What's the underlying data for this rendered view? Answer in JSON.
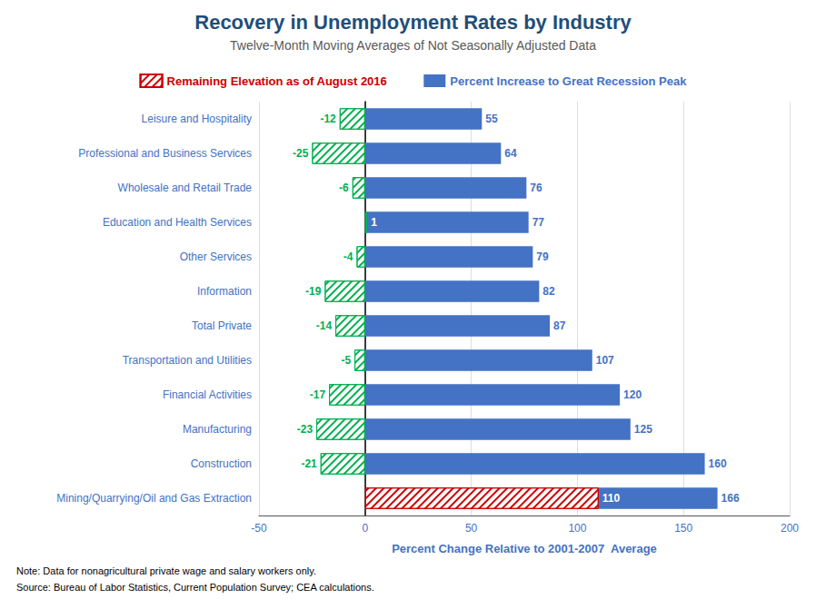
{
  "chart_data": {
    "type": "bar",
    "orientation": "horizontal",
    "title": "Recovery in Unemployment Rates by Industry",
    "subtitle": "Twelve-Month Moving Averages of Not Seasonally Adjusted Data",
    "xlabel": "Percent Change Relative to 2001-2007  Average",
    "annotations": [
      "Note: Data for nonagricultural private wage and salary workers only.",
      "Source: Bureau of Labor Statistics, Current Population Survey; CEA calculations."
    ],
    "categories": [
      "Mining/Quarrying/Oil and Gas Extraction",
      "Construction",
      "Manufacturing",
      "Financial Activities",
      "Transportation and Utilities",
      "Total Private",
      "Information",
      "Other Services",
      "Education and Health Services",
      "Wholesale and Retail Trade",
      "Professional and Business Services",
      "Leisure and Hospitality"
    ],
    "series": [
      {
        "name": "Remaining Elevation as of August 2016",
        "color": "#CC0000",
        "colors": [
          "#CC0000",
          "#00B050",
          "#00B050",
          "#00B050",
          "#00B050",
          "#00B050",
          "#00B050",
          "#00B050",
          "#00B050",
          "#00B050",
          "#00B050",
          "#00B050"
        ],
        "values": [
          110,
          -21,
          -23,
          -17,
          -5,
          -14,
          -19,
          -4,
          1,
          -6,
          -25,
          -12
        ]
      },
      {
        "name": "Percent Increase to Great Recession Peak",
        "color": "#4472C4",
        "values": [
          166,
          160,
          125,
          120,
          107,
          87,
          82,
          79,
          77,
          76,
          64,
          55
        ]
      }
    ],
    "xlim": [
      -50,
      200
    ],
    "xticks": [
      -50,
      0,
      50,
      100,
      150,
      200
    ],
    "grid": true,
    "legend": "top",
    "data_labels": true
  }
}
